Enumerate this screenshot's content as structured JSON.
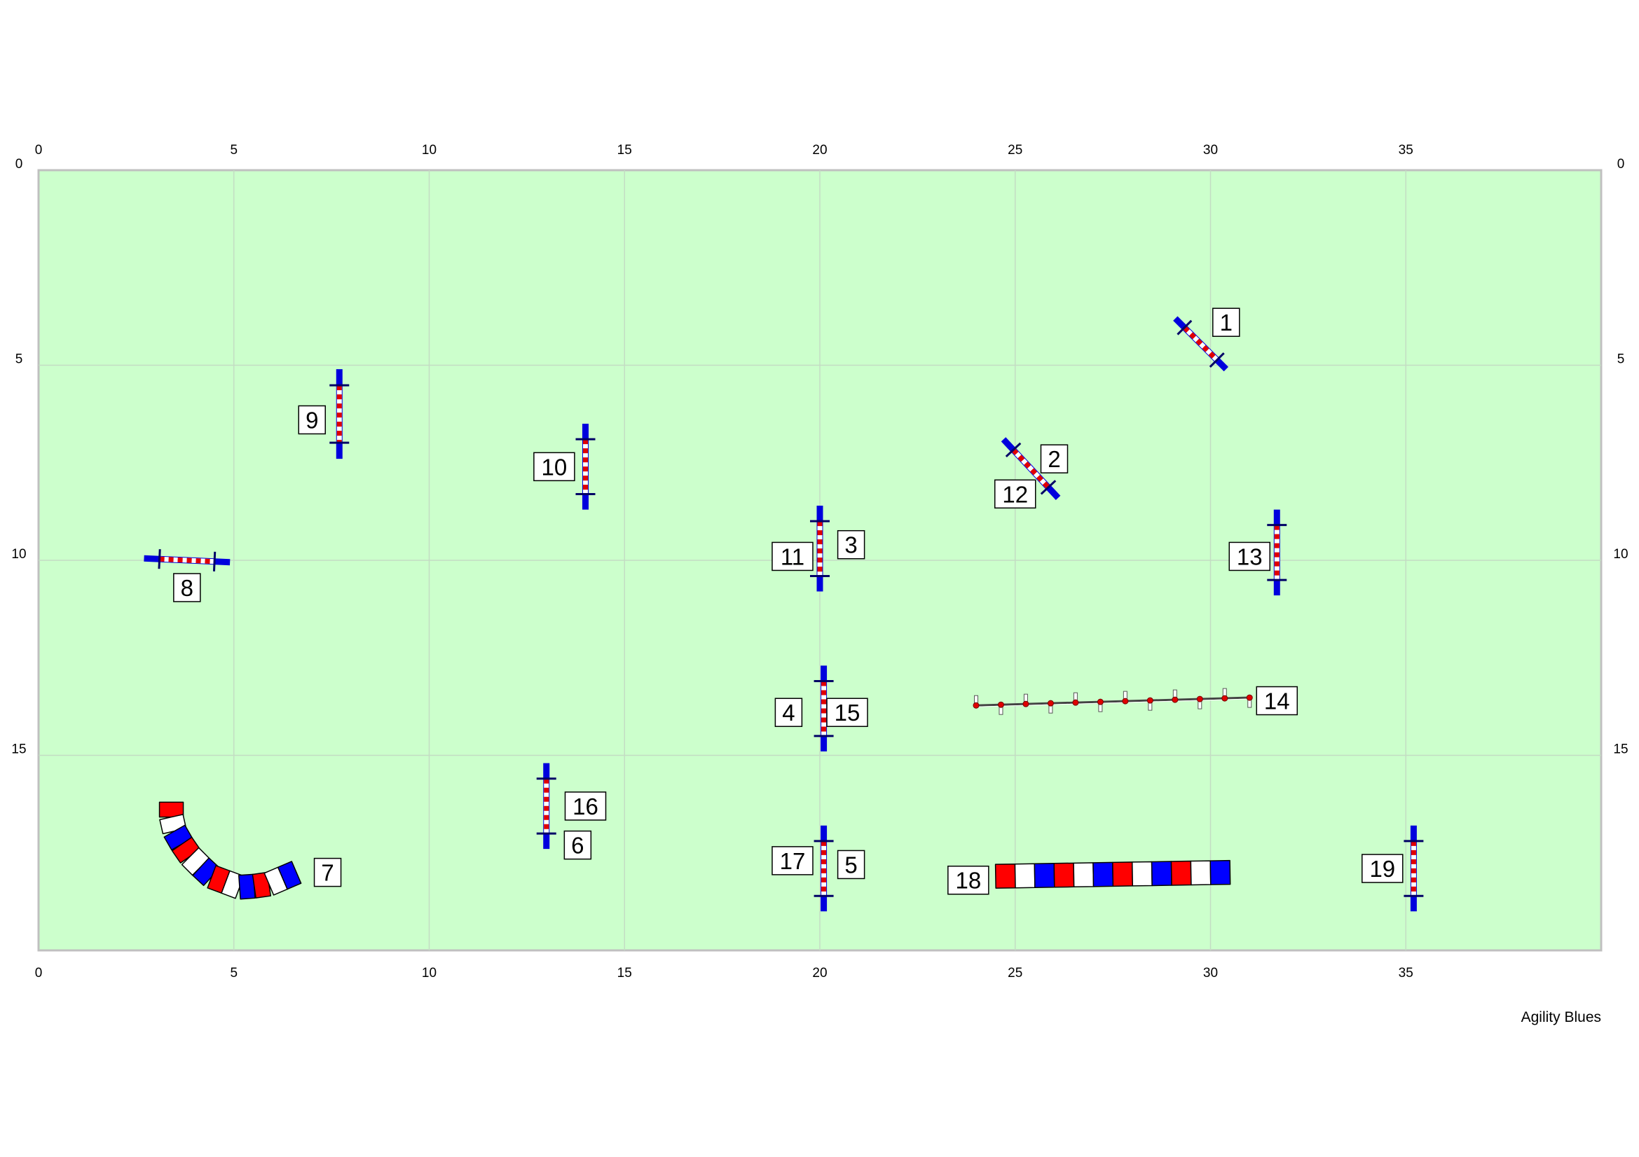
{
  "course": {
    "field_units": {
      "width": 40,
      "height": 20
    },
    "x_ticks": [
      {
        "value": 0,
        "label": "0"
      },
      {
        "value": 5,
        "label": "5"
      },
      {
        "value": 10,
        "label": "10"
      },
      {
        "value": 15,
        "label": "15"
      },
      {
        "value": 20,
        "label": "20"
      },
      {
        "value": 25,
        "label": "25"
      },
      {
        "value": 30,
        "label": "30"
      },
      {
        "value": 35,
        "label": "35"
      }
    ],
    "y_ticks": [
      {
        "value": 0,
        "label": "0"
      },
      {
        "value": 5,
        "label": "5"
      },
      {
        "value": 10,
        "label": "10"
      },
      {
        "value": 15,
        "label": "15"
      }
    ],
    "grid_step": 5,
    "colors": {
      "field": "#ccffcc",
      "field_border": "#c0c0c0",
      "grid": "#c3dcc3",
      "jump_stand": "#0000dd",
      "jump_bar_red": "#e00000",
      "jump_bar_white": "#ffffff",
      "tunnel_red": "#ff0000",
      "tunnel_white": "#ffffff",
      "tunnel_blue": "#0000ff",
      "weave_pole": "#ffffff",
      "weave_dot": "#e00000"
    },
    "credit": "Agility Blues"
  },
  "obstacles": {
    "jumps": [
      {
        "id": "jump-1-2-12-area-a",
        "x1": 29.1,
        "y1": 3.8,
        "x2": 30.4,
        "y2": 5.1
      },
      {
        "id": "jump-2-12",
        "x1": 24.7,
        "y1": 6.9,
        "x2": 26.1,
        "y2": 8.4
      },
      {
        "id": "jump-9",
        "x1": 7.7,
        "y1": 5.1,
        "x2": 7.7,
        "y2": 7.4
      },
      {
        "id": "jump-10",
        "x1": 14.0,
        "y1": 6.5,
        "x2": 14.0,
        "y2": 8.7
      },
      {
        "id": "jump-8",
        "x1": 2.7,
        "y1": 9.95,
        "x2": 4.9,
        "y2": 10.05
      },
      {
        "id": "jump-3-11",
        "x1": 20.0,
        "y1": 8.6,
        "x2": 20.0,
        "y2": 10.8
      },
      {
        "id": "jump-13",
        "x1": 31.7,
        "y1": 8.7,
        "x2": 31.7,
        "y2": 10.9
      },
      {
        "id": "jump-4-15",
        "x1": 20.1,
        "y1": 12.7,
        "x2": 20.1,
        "y2": 14.9
      },
      {
        "id": "jump-6-16",
        "x1": 13.0,
        "y1": 15.2,
        "x2": 13.0,
        "y2": 17.4
      },
      {
        "id": "jump-5-17",
        "x1": 20.1,
        "y1": 16.8,
        "x2": 20.1,
        "y2": 19.0
      },
      {
        "id": "jump-19",
        "x1": 35.2,
        "y1": 16.8,
        "x2": 35.2,
        "y2": 19.0
      }
    ],
    "weave": {
      "x1": 24.0,
      "y1": 13.72,
      "x2": 31.0,
      "y2": 13.52,
      "poles": 12
    },
    "tunnels": [
      {
        "id": "tunnel-7",
        "type": "curved",
        "points": [
          [
            3.4,
            16.2
          ],
          [
            3.4,
            16.8
          ],
          [
            3.8,
            17.5
          ],
          [
            4.4,
            18.1
          ],
          [
            5.2,
            18.4
          ],
          [
            5.9,
            18.3
          ],
          [
            6.6,
            18.0
          ]
        ],
        "pattern": [
          "red",
          "white",
          "blue",
          "red",
          "white",
          "blue",
          "red",
          "white",
          "blue",
          "red",
          "white",
          "blue"
        ]
      },
      {
        "id": "tunnel-18",
        "type": "straight",
        "points": [
          [
            24.5,
            18.1
          ],
          [
            30.5,
            18.0
          ]
        ],
        "pattern": [
          "red",
          "white",
          "blue",
          "red",
          "white",
          "blue",
          "red",
          "white",
          "blue",
          "red",
          "white",
          "blue"
        ]
      }
    ]
  },
  "numbers": [
    {
      "label": "1",
      "x": 30.4,
      "y": 3.9
    },
    {
      "label": "2",
      "x": 26.0,
      "y": 7.4
    },
    {
      "label": "12",
      "x": 25.0,
      "y": 8.3
    },
    {
      "label": "9",
      "x": 7.0,
      "y": 6.4
    },
    {
      "label": "10",
      "x": 13.2,
      "y": 7.6
    },
    {
      "label": "11",
      "x": 19.3,
      "y": 9.9
    },
    {
      "label": "3",
      "x": 20.8,
      "y": 9.6
    },
    {
      "label": "13",
      "x": 31.0,
      "y": 9.9
    },
    {
      "label": "8",
      "x": 3.8,
      "y": 10.7
    },
    {
      "label": "4",
      "x": 19.2,
      "y": 13.9
    },
    {
      "label": "15",
      "x": 20.7,
      "y": 13.9
    },
    {
      "label": "14",
      "x": 31.7,
      "y": 13.6
    },
    {
      "label": "16",
      "x": 14.0,
      "y": 16.3
    },
    {
      "label": "6",
      "x": 13.8,
      "y": 17.3
    },
    {
      "label": "7",
      "x": 7.4,
      "y": 18.0
    },
    {
      "label": "17",
      "x": 19.3,
      "y": 17.7
    },
    {
      "label": "5",
      "x": 20.8,
      "y": 17.8
    },
    {
      "label": "18",
      "x": 23.8,
      "y": 18.2
    },
    {
      "label": "19",
      "x": 34.4,
      "y": 17.9
    }
  ]
}
